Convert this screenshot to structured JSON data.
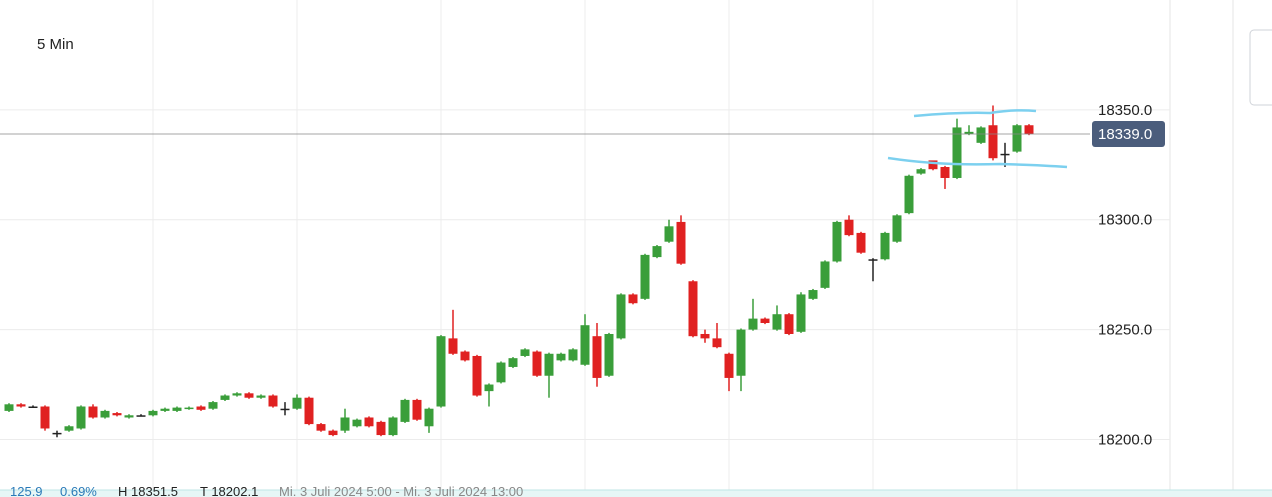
{
  "chart_data": {
    "type": "candlestick",
    "title": "5 Min",
    "open": [
      18213,
      18216,
      18215,
      18215,
      18203,
      18204,
      18205,
      18215,
      18210,
      18212,
      18210,
      18211,
      18211,
      18213,
      18213,
      18214,
      18215,
      18214,
      18218,
      18220,
      18221,
      18219,
      18220,
      18214,
      18214,
      18219,
      18207,
      18204,
      18204,
      18206,
      18210,
      18208,
      18202,
      18208,
      18218,
      18206,
      18215,
      18246,
      18240,
      18238,
      18222,
      18226,
      18233,
      18238,
      18240,
      18229,
      18236,
      18236,
      18234,
      18247,
      18229,
      18246,
      18266,
      18264,
      18283,
      18290,
      18299,
      18272,
      18248,
      18246,
      18239,
      18229,
      18250,
      18255,
      18250,
      18257,
      18249,
      18264,
      18269,
      18281,
      18300,
      18294,
      18282,
      18282,
      18290,
      18303,
      18321,
      18327,
      18324,
      18319,
      18339,
      18335,
      18343,
      18330,
      18331,
      18343
    ],
    "high": [
      18216.5,
      18216.5,
      18215.5,
      18215.5,
      18204,
      18206.5,
      18215.5,
      18216,
      18213.5,
      18212.5,
      18211.5,
      18211.5,
      18213.5,
      18214.5,
      18215,
      18215,
      18215.5,
      18217.5,
      18220.5,
      18221.5,
      18221.5,
      18220.5,
      18220.5,
      18217,
      18220.5,
      18219.5,
      18207.5,
      18204.5,
      18214,
      18209.5,
      18210.5,
      18208.5,
      18210.5,
      18218.5,
      18218.5,
      18214.5,
      18247.5,
      18259,
      18240.5,
      18238.5,
      18225.5,
      18235.5,
      18237.5,
      18241.5,
      18240.5,
      18239.5,
      18239.5,
      18241.5,
      18257,
      18253,
      18248.5,
      18266.5,
      18266.5,
      18284.5,
      18288.5,
      18300,
      18302,
      18272.5,
      18250,
      18253,
      18239.5,
      18250.5,
      18264,
      18255.5,
      18261,
      18257.5,
      18267,
      18268.5,
      18281.5,
      18299.5,
      18302,
      18294.5,
      18282.5,
      18294.5,
      18302.5,
      18320.5,
      18323.5,
      18325,
      18324.5,
      18346,
      18343,
      18342.5,
      18352,
      18335,
      18343.5,
      18343.5
    ],
    "low": [
      18212.5,
      18214.5,
      18214.5,
      18204,
      18201,
      18203.5,
      18204.5,
      18209.5,
      18209.5,
      18210.5,
      18209.5,
      18210.5,
      18210.5,
      18212.5,
      18212.5,
      18213.5,
      18213,
      18213.5,
      18217.5,
      18219.5,
      18218.5,
      18218.5,
      18214.5,
      18211,
      18213.5,
      18206.5,
      18203.5,
      18201.5,
      18203,
      18205.5,
      18205.5,
      18201.5,
      18201.5,
      18207.5,
      18208.5,
      18203,
      18214.5,
      18238.5,
      18235.5,
      18219.5,
      18215,
      18225.5,
      18232.5,
      18237.5,
      18228.5,
      18219,
      18235.5,
      18235.5,
      18233.5,
      18224,
      18228.5,
      18245.5,
      18261.5,
      18263.5,
      18282.5,
      18289.5,
      18279.5,
      18246.5,
      18244,
      18241.5,
      18222,
      18222,
      18249.5,
      18252.5,
      18249.5,
      18247.5,
      18248.5,
      18263.5,
      18268.5,
      18280.5,
      18292.5,
      18284.5,
      18272,
      18281.5,
      18289.5,
      18302.5,
      18320.5,
      18322.5,
      18314,
      18318.5,
      18338.5,
      18334.5,
      18327,
      18324,
      18330.5,
      18338.5
    ],
    "close": [
      18216,
      18215,
      18215,
      18205,
      18203,
      18206,
      18215,
      18210,
      18213,
      18211,
      18211,
      18211,
      18213,
      18214,
      18214.5,
      18214.5,
      18213.5,
      18217,
      18220,
      18221,
      18219,
      18220,
      18215,
      18214,
      18219,
      18207,
      18204,
      18202,
      18210,
      18209,
      18206,
      18202,
      18210,
      18218,
      18209,
      18214,
      18247,
      18239,
      18236,
      18220,
      18225,
      18235,
      18237,
      18241,
      18229,
      18239,
      18239,
      18241,
      18252,
      18228,
      18248,
      18266,
      18262,
      18284,
      18288,
      18297,
      18280,
      18247,
      18246,
      18242,
      18228,
      18250,
      18255,
      18253,
      18257,
      18248,
      18266,
      18268,
      18281,
      18299,
      18293,
      18285,
      18282,
      18294,
      18302,
      18320,
      18323,
      18323,
      18319,
      18342,
      18340,
      18342,
      18328,
      18330,
      18343,
      18339
    ],
    "up_color": "#3a9e3a",
    "down_color": "#e02121",
    "ylim": [
      18177,
      18400
    ],
    "yticks": [
      {
        "value": 18200,
        "label": "18200.0"
      },
      {
        "value": 18250,
        "label": "18250.0"
      },
      {
        "value": 18300,
        "label": "18300.0"
      },
      {
        "value": 18350,
        "label": "18350.0"
      }
    ],
    "grid": true,
    "last_price": {
      "value": 18339,
      "label": "18339.0"
    },
    "footer": [
      "125.9",
      "0.69%",
      "H 18351.5",
      "T 18202.1",
      "Mi. 3 Juli 2024 5:00 - Mi. 3 Juli 2024 13:00"
    ]
  }
}
